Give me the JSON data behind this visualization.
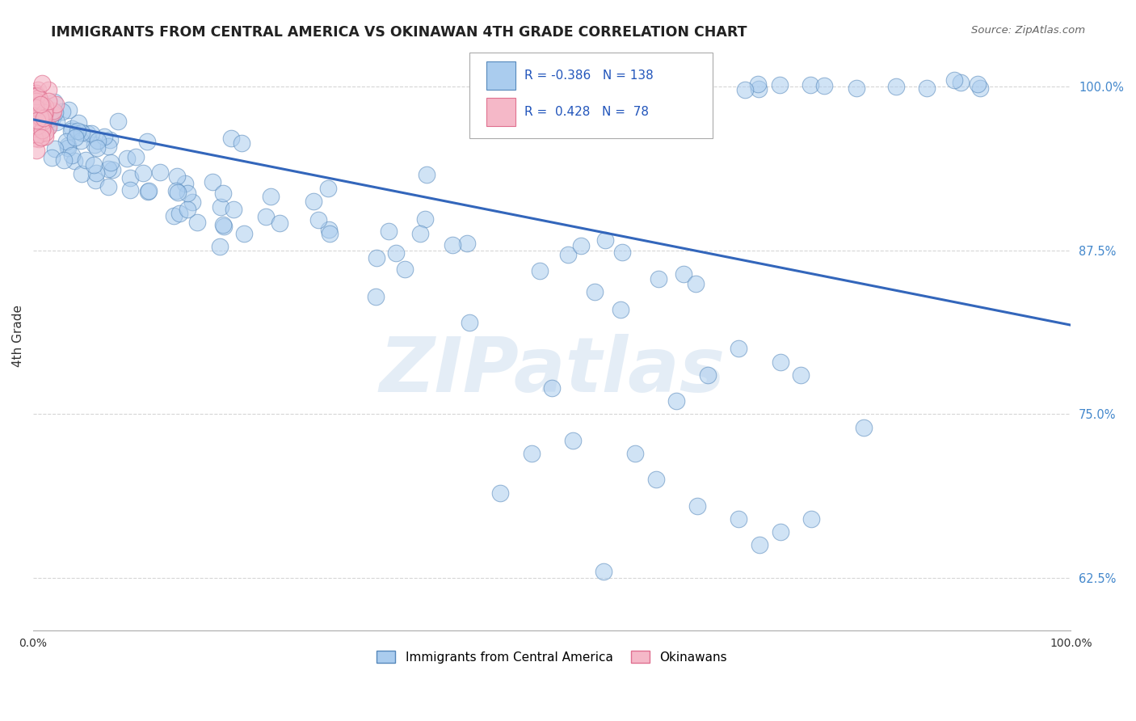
{
  "title": "IMMIGRANTS FROM CENTRAL AMERICA VS OKINAWAN 4TH GRADE CORRELATION CHART",
  "source": "Source: ZipAtlas.com",
  "ylabel": "4th Grade",
  "xlim": [
    0.0,
    1.0
  ],
  "ylim": [
    0.585,
    1.035
  ],
  "yticks": [
    0.625,
    0.75,
    0.875,
    1.0
  ],
  "ytick_labels": [
    "62.5%",
    "75.0%",
    "87.5%",
    "100.0%"
  ],
  "legend_r1_val": "-0.386",
  "legend_n1_val": "138",
  "legend_r2_val": "0.428",
  "legend_n2_val": "78",
  "blue_color": "#aaccee",
  "blue_edge": "#5588bb",
  "pink_color": "#f5b8c8",
  "pink_edge": "#e07090",
  "trend_color": "#3366bb",
  "watermark": "ZIPatlas",
  "background_color": "#ffffff",
  "grid_color": "#bbbbbb",
  "title_color": "#222222",
  "source_color": "#666666",
  "tick_color": "#4488cc",
  "seed": 99,
  "trend_x0": 0.0,
  "trend_y0": 0.975,
  "trend_x1": 1.0,
  "trend_y1": 0.818
}
